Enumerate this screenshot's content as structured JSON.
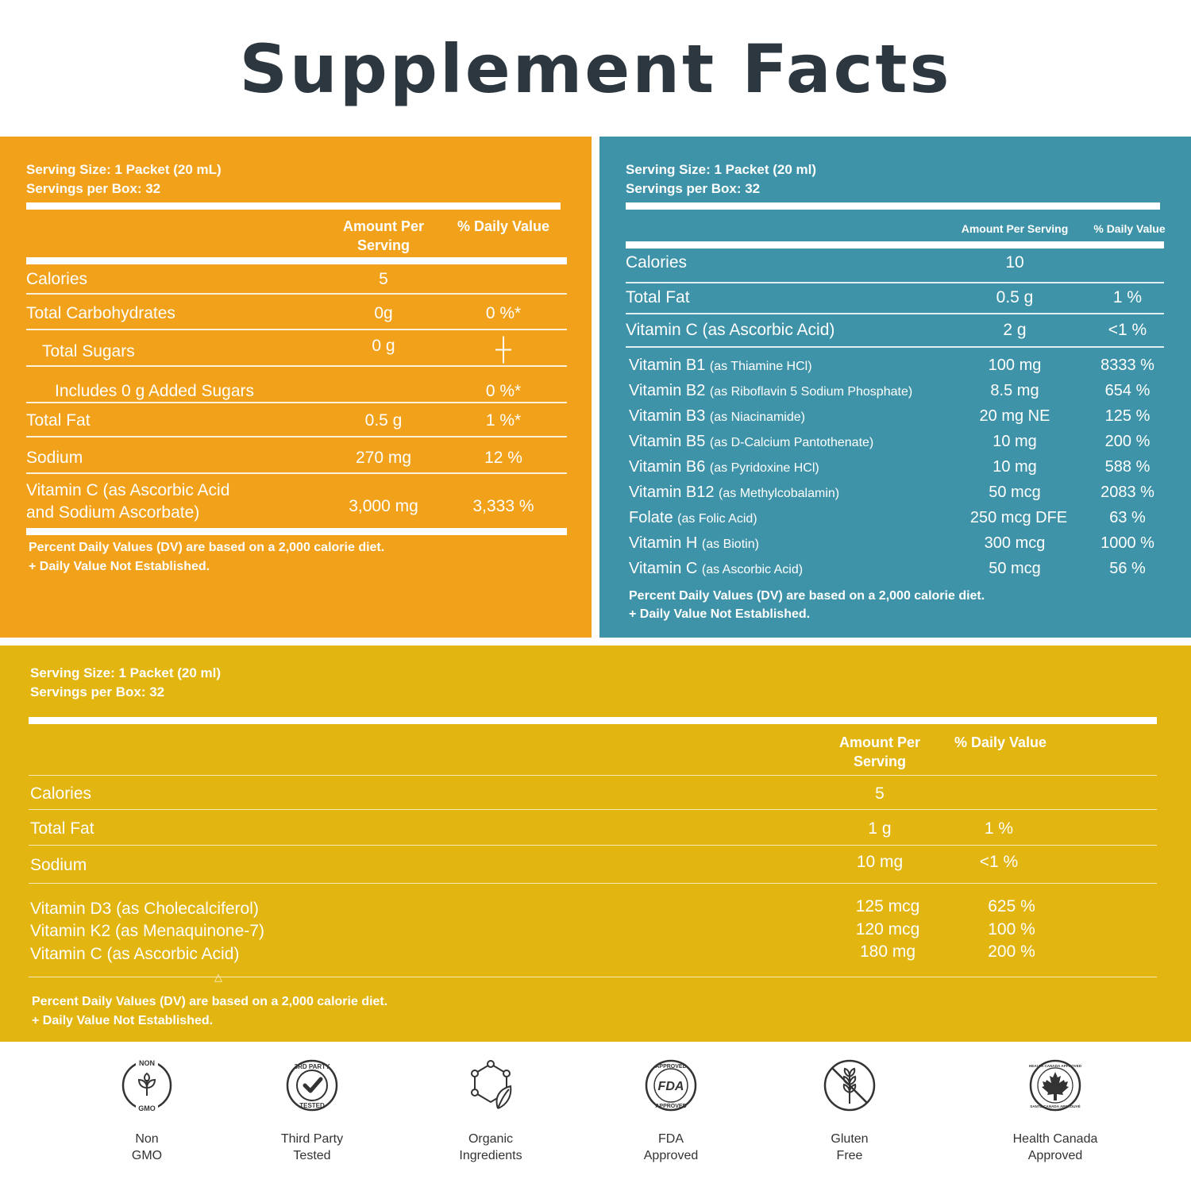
{
  "title": "Supplement Facts",
  "panel1": {
    "serving_size": "Serving Size: 1 Packet (20 mL)",
    "servings": "Servings per Box: 32",
    "col_amount": "Amount Per Serving",
    "col_dv": "% Daily Value",
    "rows": [
      {
        "name": "Calories",
        "amount": "5",
        "dv": ""
      },
      {
        "name": "Total Carbohydrates",
        "amount": "0g",
        "dv": "0 %*"
      },
      {
        "name": "Total Sugars",
        "amount": "0 g",
        "dv": "┼"
      },
      {
        "name": "Includes 0 g Added Sugars",
        "amount": "",
        "dv": "0 %*"
      },
      {
        "name": "Total Fat",
        "amount": "0.5 g",
        "dv": "1 %*"
      },
      {
        "name": "Sodium",
        "amount": "270 mg",
        "dv": "12 %"
      },
      {
        "name": "Vitamin C (as Ascorbic Acid",
        "name2": "and Sodium Ascorbate)",
        "amount": "3,000 mg",
        "dv": "3,333 %"
      }
    ],
    "foot1": "Percent Daily Values (DV) are based on a 2,000 calorie diet.",
    "foot2": "+ Daily Value Not Established."
  },
  "panel2": {
    "serving_size": "Serving Size: 1 Packet  (20 ml)",
    "servings": "Servings per Box: 32",
    "col_amount": "Amount Per Serving",
    "col_dv": "% Daily Value",
    "top_rows": [
      {
        "name": "Calories",
        "amount": "10",
        "dv": ""
      },
      {
        "name": "Total Fat",
        "amount": "0.5 g",
        "dv": "1 %"
      },
      {
        "name": "Vitamin C (as Ascorbic Acid)",
        "amount": "2 g",
        "dv": "<1 %"
      }
    ],
    "vit_rows": [
      {
        "name": "Vitamin B1",
        "sub": "(as Thiamine HCl)",
        "amount": "100 mg",
        "dv": "8333 %"
      },
      {
        "name": "Vitamin B2",
        "sub": "(as Riboflavin 5 Sodium Phosphate)",
        "amount": "8.5 mg",
        "dv": "654 %"
      },
      {
        "name": "Vitamin B3",
        "sub": "(as Niacinamide)",
        "amount": "20 mg NE",
        "dv": "125 %"
      },
      {
        "name": "Vitamin B5",
        "sub": "(as D-Calcium Pantothenate)",
        "amount": "10 mg",
        "dv": "200 %"
      },
      {
        "name": "Vitamin B6",
        "sub": "(as Pyridoxine HCl)",
        "amount": "10 mg",
        "dv": "588 %"
      },
      {
        "name": "Vitamin B12",
        "sub": "(as Methylcobalamin)",
        "amount": "50 mcg",
        "dv": "2083 %"
      },
      {
        "name": "Folate",
        "sub": "(as Folic Acid)",
        "amount": "250 mcg DFE",
        "dv": "63 %"
      },
      {
        "name": "Vitamin H",
        "sub": "(as Biotin)",
        "amount": "300 mcg",
        "dv": "1000 %"
      },
      {
        "name": "Vitamin C",
        "sub": "(as Ascorbic Acid)",
        "amount": "50 mcg",
        "dv": "56 %"
      }
    ],
    "foot1": "Percent Daily Values (DV) are based on a 2,000 calorie diet.",
    "foot2": "+ Daily Value Not Established."
  },
  "panel3": {
    "serving_size": "Serving Size: 1 Packet (20 ml)",
    "servings": "Servings per Box: 32",
    "col_amount": "Amount Per Serving",
    "col_dv": "% Daily Value",
    "rows": [
      {
        "name": "Calories",
        "amount": "5",
        "dv": ""
      },
      {
        "name": "Total Fat",
        "amount": "1 g",
        "dv": "1 %"
      },
      {
        "name": "Sodium",
        "amount": "10 mg",
        "dv": "<1 %"
      }
    ],
    "vit_rows": [
      {
        "name": "Vitamin D3 (as Cholecalciferol)",
        "amount": "125 mcg",
        "dv": "625 %"
      },
      {
        "name": "Vitamin K2 (as Menaquinone-7)",
        "amount": "120 mcg",
        "dv": "100 %"
      },
      {
        "name": "Vitamin C (as Ascorbic Acid)",
        "amount": "180 mg",
        "dv": "200 %"
      }
    ],
    "marker": "△",
    "foot1": "Percent Daily Values (DV) are based on a 2,000 calorie diet.",
    "foot2": "+ Daily Value Not Established."
  },
  "badges": [
    {
      "icon": "non-gmo-icon",
      "line1": "Non",
      "line2": "GMO",
      "text_top": "NON",
      "text_bottom": "GMO"
    },
    {
      "icon": "third-party-tested-icon",
      "line1": "Third Party",
      "line2": "Tested",
      "text_top": "3RD PARTY",
      "text_bottom": "TESTED"
    },
    {
      "icon": "organic-ingredients-icon",
      "line1": "Organic",
      "line2": "Ingredients"
    },
    {
      "icon": "fda-approved-icon",
      "line1": "FDA",
      "line2": "Approved",
      "text_top": "APPROVED",
      "text_mid": "FDA",
      "text_bottom": "APPROVED"
    },
    {
      "icon": "gluten-free-icon",
      "line1": "Gluten",
      "line2": "Free"
    },
    {
      "icon": "health-canada-icon",
      "line1": "Health Canada",
      "line2": "Approved",
      "text_top": "HEALTH CANADA APPROVED",
      "text_bottom": "SANTÉ CANADA APPROUVÉ"
    }
  ],
  "colors": {
    "orange": "#f2a21a",
    "teal": "#3e93a8",
    "yellow": "#e2b511",
    "title": "#2d3740"
  }
}
